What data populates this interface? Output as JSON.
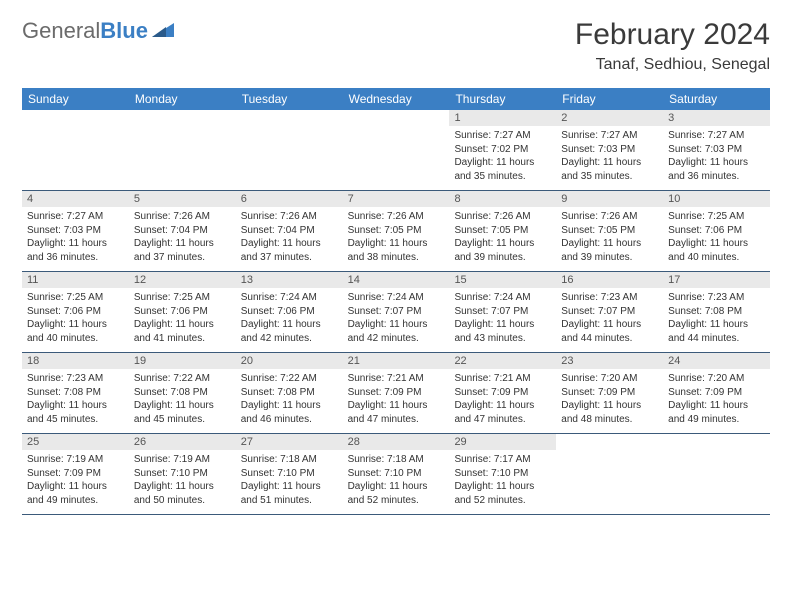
{
  "logo": {
    "general": "General",
    "blue": "Blue"
  },
  "title": "February 2024",
  "location": "Tanaf, Sedhiou, Senegal",
  "colors": {
    "header_bg": "#3b7fc4",
    "header_text": "#ffffff",
    "daynum_bg": "#e9e9e9",
    "row_border": "#3b5a7a",
    "body_text": "#333333"
  },
  "weekdays": [
    "Sunday",
    "Monday",
    "Tuesday",
    "Wednesday",
    "Thursday",
    "Friday",
    "Saturday"
  ],
  "weeks": [
    [
      {
        "empty": true
      },
      {
        "empty": true
      },
      {
        "empty": true
      },
      {
        "empty": true
      },
      {
        "day": "1",
        "sunrise": "Sunrise: 7:27 AM",
        "sunset": "Sunset: 7:02 PM",
        "daylight": "Daylight: 11 hours and 35 minutes."
      },
      {
        "day": "2",
        "sunrise": "Sunrise: 7:27 AM",
        "sunset": "Sunset: 7:03 PM",
        "daylight": "Daylight: 11 hours and 35 minutes."
      },
      {
        "day": "3",
        "sunrise": "Sunrise: 7:27 AM",
        "sunset": "Sunset: 7:03 PM",
        "daylight": "Daylight: 11 hours and 36 minutes."
      }
    ],
    [
      {
        "day": "4",
        "sunrise": "Sunrise: 7:27 AM",
        "sunset": "Sunset: 7:03 PM",
        "daylight": "Daylight: 11 hours and 36 minutes."
      },
      {
        "day": "5",
        "sunrise": "Sunrise: 7:26 AM",
        "sunset": "Sunset: 7:04 PM",
        "daylight": "Daylight: 11 hours and 37 minutes."
      },
      {
        "day": "6",
        "sunrise": "Sunrise: 7:26 AM",
        "sunset": "Sunset: 7:04 PM",
        "daylight": "Daylight: 11 hours and 37 minutes."
      },
      {
        "day": "7",
        "sunrise": "Sunrise: 7:26 AM",
        "sunset": "Sunset: 7:05 PM",
        "daylight": "Daylight: 11 hours and 38 minutes."
      },
      {
        "day": "8",
        "sunrise": "Sunrise: 7:26 AM",
        "sunset": "Sunset: 7:05 PM",
        "daylight": "Daylight: 11 hours and 39 minutes."
      },
      {
        "day": "9",
        "sunrise": "Sunrise: 7:26 AM",
        "sunset": "Sunset: 7:05 PM",
        "daylight": "Daylight: 11 hours and 39 minutes."
      },
      {
        "day": "10",
        "sunrise": "Sunrise: 7:25 AM",
        "sunset": "Sunset: 7:06 PM",
        "daylight": "Daylight: 11 hours and 40 minutes."
      }
    ],
    [
      {
        "day": "11",
        "sunrise": "Sunrise: 7:25 AM",
        "sunset": "Sunset: 7:06 PM",
        "daylight": "Daylight: 11 hours and 40 minutes."
      },
      {
        "day": "12",
        "sunrise": "Sunrise: 7:25 AM",
        "sunset": "Sunset: 7:06 PM",
        "daylight": "Daylight: 11 hours and 41 minutes."
      },
      {
        "day": "13",
        "sunrise": "Sunrise: 7:24 AM",
        "sunset": "Sunset: 7:06 PM",
        "daylight": "Daylight: 11 hours and 42 minutes."
      },
      {
        "day": "14",
        "sunrise": "Sunrise: 7:24 AM",
        "sunset": "Sunset: 7:07 PM",
        "daylight": "Daylight: 11 hours and 42 minutes."
      },
      {
        "day": "15",
        "sunrise": "Sunrise: 7:24 AM",
        "sunset": "Sunset: 7:07 PM",
        "daylight": "Daylight: 11 hours and 43 minutes."
      },
      {
        "day": "16",
        "sunrise": "Sunrise: 7:23 AM",
        "sunset": "Sunset: 7:07 PM",
        "daylight": "Daylight: 11 hours and 44 minutes."
      },
      {
        "day": "17",
        "sunrise": "Sunrise: 7:23 AM",
        "sunset": "Sunset: 7:08 PM",
        "daylight": "Daylight: 11 hours and 44 minutes."
      }
    ],
    [
      {
        "day": "18",
        "sunrise": "Sunrise: 7:23 AM",
        "sunset": "Sunset: 7:08 PM",
        "daylight": "Daylight: 11 hours and 45 minutes."
      },
      {
        "day": "19",
        "sunrise": "Sunrise: 7:22 AM",
        "sunset": "Sunset: 7:08 PM",
        "daylight": "Daylight: 11 hours and 45 minutes."
      },
      {
        "day": "20",
        "sunrise": "Sunrise: 7:22 AM",
        "sunset": "Sunset: 7:08 PM",
        "daylight": "Daylight: 11 hours and 46 minutes."
      },
      {
        "day": "21",
        "sunrise": "Sunrise: 7:21 AM",
        "sunset": "Sunset: 7:09 PM",
        "daylight": "Daylight: 11 hours and 47 minutes."
      },
      {
        "day": "22",
        "sunrise": "Sunrise: 7:21 AM",
        "sunset": "Sunset: 7:09 PM",
        "daylight": "Daylight: 11 hours and 47 minutes."
      },
      {
        "day": "23",
        "sunrise": "Sunrise: 7:20 AM",
        "sunset": "Sunset: 7:09 PM",
        "daylight": "Daylight: 11 hours and 48 minutes."
      },
      {
        "day": "24",
        "sunrise": "Sunrise: 7:20 AM",
        "sunset": "Sunset: 7:09 PM",
        "daylight": "Daylight: 11 hours and 49 minutes."
      }
    ],
    [
      {
        "day": "25",
        "sunrise": "Sunrise: 7:19 AM",
        "sunset": "Sunset: 7:09 PM",
        "daylight": "Daylight: 11 hours and 49 minutes."
      },
      {
        "day": "26",
        "sunrise": "Sunrise: 7:19 AM",
        "sunset": "Sunset: 7:10 PM",
        "daylight": "Daylight: 11 hours and 50 minutes."
      },
      {
        "day": "27",
        "sunrise": "Sunrise: 7:18 AM",
        "sunset": "Sunset: 7:10 PM",
        "daylight": "Daylight: 11 hours and 51 minutes."
      },
      {
        "day": "28",
        "sunrise": "Sunrise: 7:18 AM",
        "sunset": "Sunset: 7:10 PM",
        "daylight": "Daylight: 11 hours and 52 minutes."
      },
      {
        "day": "29",
        "sunrise": "Sunrise: 7:17 AM",
        "sunset": "Sunset: 7:10 PM",
        "daylight": "Daylight: 11 hours and 52 minutes."
      },
      {
        "empty": true
      },
      {
        "empty": true
      }
    ]
  ]
}
